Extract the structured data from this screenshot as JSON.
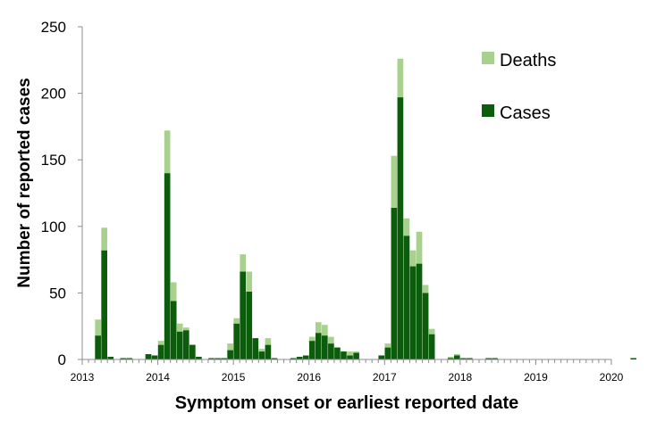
{
  "chart_data": {
    "type": "bar",
    "stacked": true,
    "title": "",
    "xlabel": "Symptom onset or earliest reported date",
    "ylabel": "Number of reported cases",
    "ylim": [
      0,
      250
    ],
    "yticks": [
      0,
      50,
      100,
      150,
      200,
      250
    ],
    "xlim": [
      2013,
      2020
    ],
    "xticks": [
      "2013",
      "2014",
      "2015",
      "2016",
      "2017",
      "2018",
      "2019",
      "2020"
    ],
    "months_per_year": 12,
    "grid": false,
    "legend_position": "top-right",
    "colors": {
      "cases": "#0b5d0b",
      "deaths": "#a9d18e"
    },
    "series": [
      {
        "name": "Cases",
        "values": [
          0,
          0,
          18,
          82,
          2,
          0,
          1,
          1,
          0,
          0,
          4,
          3,
          11,
          140,
          44,
          21,
          22,
          11,
          2,
          0,
          1,
          1,
          1,
          7,
          27,
          66,
          51,
          16,
          6,
          11,
          1,
          0,
          0,
          1,
          2,
          3,
          14,
          20,
          18,
          12,
          9,
          6,
          3,
          5,
          0,
          0,
          0,
          3,
          9,
          114,
          197,
          93,
          70,
          72,
          50,
          19,
          0,
          0,
          1,
          3,
          1,
          1,
          0,
          0,
          1,
          1,
          0,
          0,
          0,
          0,
          0,
          0,
          0,
          0,
          0,
          0,
          0,
          0,
          0,
          0,
          0,
          0,
          0,
          0,
          0,
          0,
          0,
          1,
          0,
          0,
          0,
          0,
          0,
          0,
          0,
          0
        ]
      },
      {
        "name": "Deaths",
        "values": [
          0,
          0,
          12,
          17,
          0,
          0,
          0,
          0,
          0,
          0,
          0,
          0,
          3,
          32,
          14,
          6,
          2,
          0,
          0,
          0,
          0,
          0,
          0,
          5,
          4,
          13,
          15,
          0,
          2,
          5,
          0,
          0,
          0,
          0,
          0,
          0,
          3,
          8,
          8,
          5,
          0,
          0,
          3,
          1,
          0,
          0,
          0,
          0,
          3,
          39,
          29,
          13,
          12,
          24,
          6,
          4,
          0,
          0,
          1,
          1,
          0,
          0,
          0,
          0,
          0,
          0,
          0,
          0,
          0,
          0,
          0,
          0,
          0,
          0,
          0,
          0,
          0,
          0,
          0,
          0,
          0,
          0,
          0,
          0,
          0,
          0,
          0,
          0,
          0,
          0,
          0,
          0,
          0,
          0,
          0,
          0
        ]
      }
    ]
  }
}
